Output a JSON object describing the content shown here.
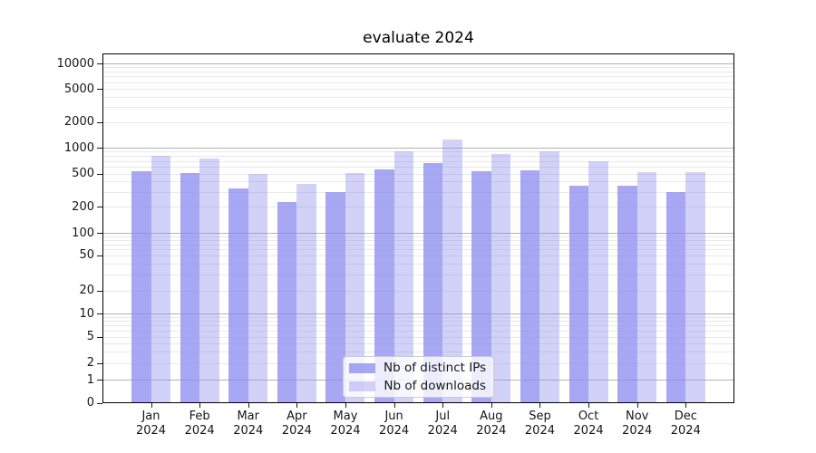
{
  "chart_data": {
    "type": "bar",
    "title": "evaluate 2024",
    "x_months": [
      "Jan",
      "Feb",
      "Mar",
      "Apr",
      "May",
      "Jun",
      "Jul",
      "Aug",
      "Sep",
      "Oct",
      "Nov",
      "Dec"
    ],
    "x_year": "2024",
    "series": [
      {
        "name": "Nb of distinct IPs",
        "values": [
          527,
          510,
          328,
          229,
          297,
          562,
          661,
          535,
          538,
          356,
          356,
          299
        ]
      },
      {
        "name": "Nb of downloads",
        "values": [
          810,
          741,
          494,
          372,
          510,
          914,
          1245,
          843,
          910,
          694,
          518,
          518
        ]
      }
    ],
    "y_ticks": [
      0,
      1,
      2,
      5,
      10,
      20,
      50,
      100,
      200,
      500,
      1000,
      2000,
      5000,
      10000
    ],
    "yscale": "symlog",
    "ylim": [
      0,
      13000
    ],
    "grid": true,
    "legend_position": "lower center",
    "colors": {
      "distinct_ips": "rgba(138,138,240,0.75)",
      "downloads": "rgba(138,138,240,0.38)",
      "major_grid": "#b3b3b3",
      "minor_grid": "#e9e9e9"
    }
  }
}
